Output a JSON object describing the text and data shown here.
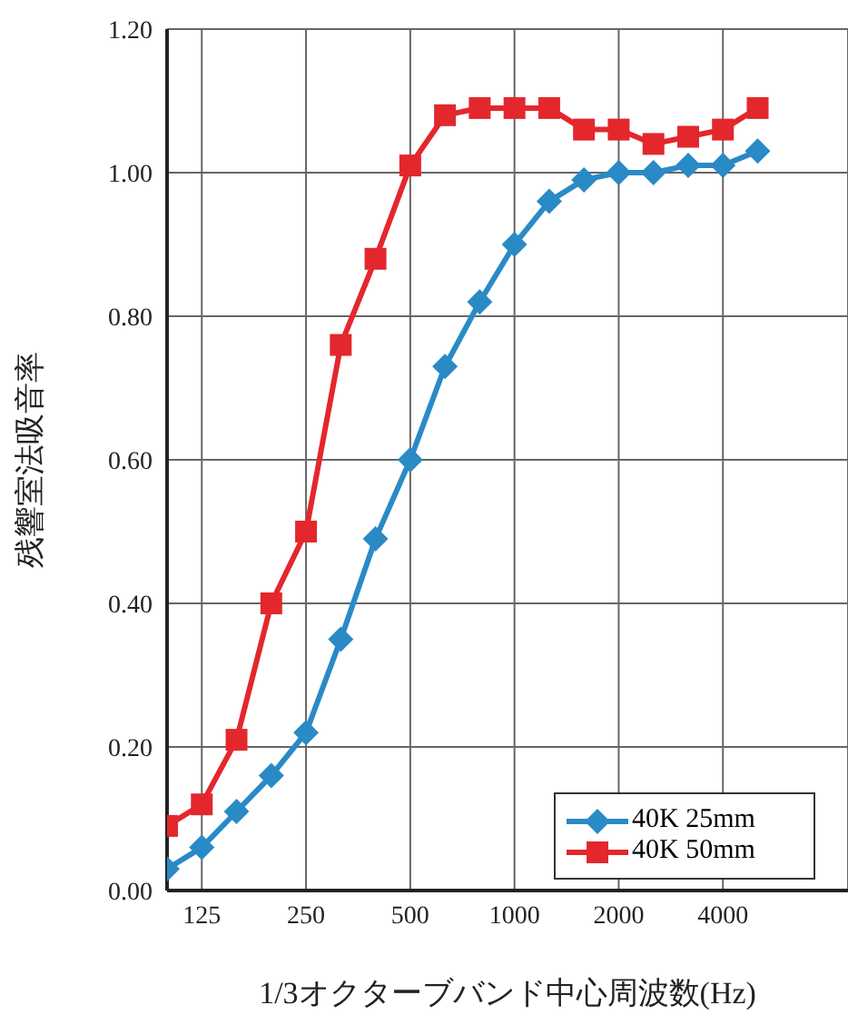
{
  "chart_data": {
    "type": "line",
    "xlabel": "1/3オクターブバンド中心周波数(Hz)",
    "ylabel": "残響室法吸音率",
    "categories": [
      null,
      "125",
      null,
      null,
      "250",
      null,
      null,
      "500",
      null,
      null,
      "1000",
      null,
      null,
      "2000",
      null,
      null,
      "4000",
      null
    ],
    "series": [
      {
        "name": "40K 25mm",
        "color": "#2a8ac6",
        "marker": "diamond",
        "values": [
          0.03,
          0.06,
          0.11,
          0.16,
          0.22,
          0.35,
          0.49,
          0.6,
          0.73,
          0.82,
          0.9,
          0.96,
          0.99,
          1.0,
          1.0,
          1.01,
          1.01,
          1.03
        ]
      },
      {
        "name": "40K 50mm",
        "color": "#e3272d",
        "marker": "square",
        "values": [
          0.09,
          0.12,
          0.21,
          0.4,
          0.5,
          0.76,
          0.88,
          1.01,
          1.08,
          1.09,
          1.09,
          1.09,
          1.06,
          1.06,
          1.04,
          1.05,
          1.06,
          1.09
        ]
      }
    ],
    "ylim": [
      0,
      1.2
    ],
    "yticks": [
      {
        "value": 0,
        "label": "0.00"
      },
      {
        "value": 0.2,
        "label": "0.20"
      },
      {
        "value": 0.4,
        "label": "0.40"
      },
      {
        "value": 0.6,
        "label": "0.60"
      },
      {
        "value": 0.8,
        "label": "0.80"
      },
      {
        "value": 1,
        "label": "1.00"
      },
      {
        "value": 1.2,
        "label": "1.20"
      }
    ],
    "grid": true,
    "legend": "bottom right",
    "line_style": "solid"
  }
}
